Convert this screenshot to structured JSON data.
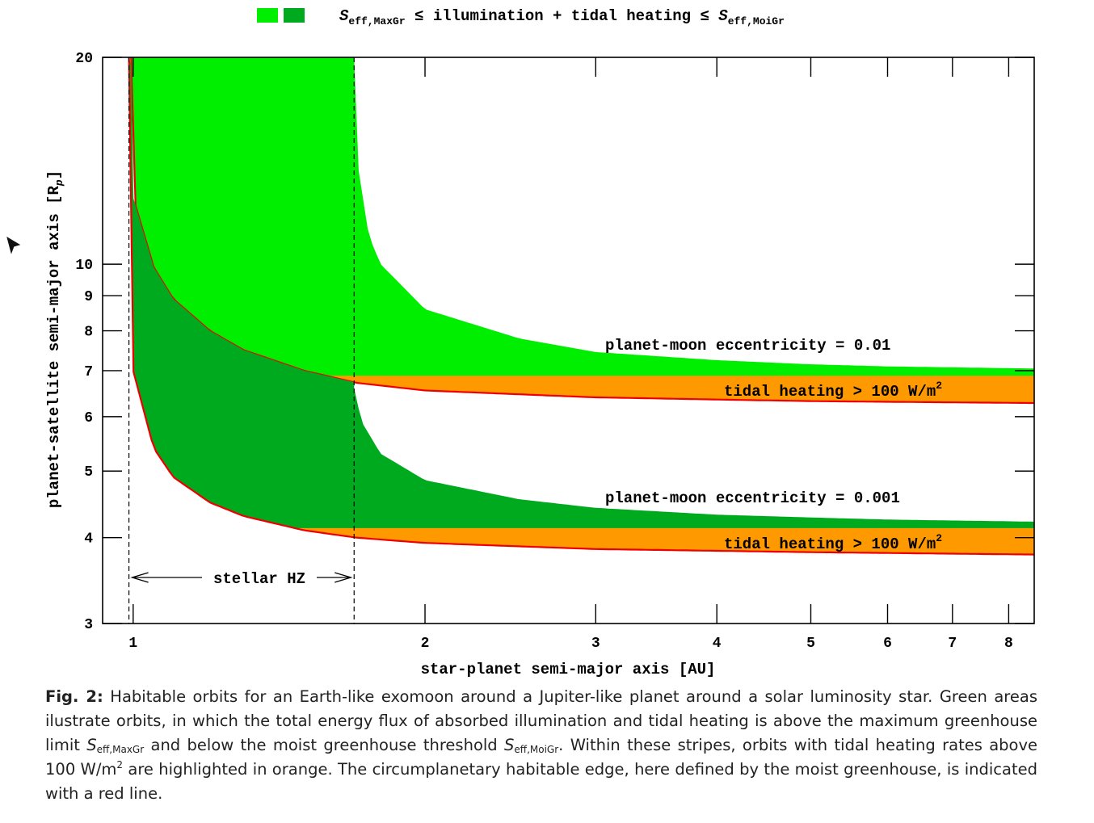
{
  "chart_data": {
    "type": "area",
    "legend": {
      "position": "top-center",
      "swatch_colors": [
        "#00ee00",
        "#00aa1e"
      ],
      "label_S1": "S",
      "label_S1_sub": "eff,MaxGr",
      "label_le1": " ≤ illumination + tidal heating ≤ ",
      "label_S2": "S",
      "label_S2_sub": "eff,MoiGr"
    },
    "xlabel": "star-planet semi-major axis [AU]",
    "ylabel": "planet-satellite semi-major axis [R",
    "ylabel_sub": "p",
    "ylabel_end": "]",
    "xscale": "log",
    "yscale": "log",
    "xlim": [
      0.93,
      8.5
    ],
    "ylim": [
      3,
      20
    ],
    "xticks": [
      1,
      2,
      3,
      4,
      5,
      6,
      7,
      8
    ],
    "yticks": [
      3,
      4,
      5,
      6,
      7,
      8,
      9,
      10,
      20
    ],
    "hz": {
      "inner": 0.99,
      "outer": 1.69,
      "label": "stellar HZ"
    },
    "series": [
      {
        "eccentricity": 0.01,
        "color": "#00ee00",
        "red_line": [
          [
            0.995,
            20
          ],
          [
            1.0,
            12.5
          ],
          [
            1.05,
            9.9
          ],
          [
            1.1,
            8.9
          ],
          [
            1.2,
            8.0
          ],
          [
            1.3,
            7.5
          ],
          [
            1.5,
            7.0
          ],
          [
            1.7,
            6.72
          ],
          [
            2.0,
            6.55
          ],
          [
            3.0,
            6.4
          ],
          [
            5.0,
            6.32
          ],
          [
            8.5,
            6.28
          ]
        ],
        "outer_edge": [
          [
            1.69,
            20
          ],
          [
            1.7,
            14.3
          ],
          [
            1.75,
            11.0
          ],
          [
            1.8,
            10.0
          ],
          [
            2.0,
            8.6
          ],
          [
            2.5,
            7.8
          ],
          [
            3.0,
            7.45
          ],
          [
            4.0,
            7.25
          ],
          [
            5.0,
            7.15
          ],
          [
            6.0,
            7.1
          ],
          [
            8.5,
            7.05
          ]
        ],
        "tidal_threshold": 6.88
      },
      {
        "eccentricity": 0.001,
        "color": "#00aa1e",
        "red_line": [
          [
            0.99,
            20
          ],
          [
            0.995,
            10
          ],
          [
            1.0,
            7.0
          ],
          [
            1.05,
            5.4
          ],
          [
            1.1,
            4.9
          ],
          [
            1.2,
            4.5
          ],
          [
            1.3,
            4.3
          ],
          [
            1.5,
            4.1
          ],
          [
            1.7,
            4.0
          ],
          [
            2.0,
            3.93
          ],
          [
            3.0,
            3.85
          ],
          [
            5.0,
            3.81
          ],
          [
            8.5,
            3.78
          ]
        ],
        "outer_edge": [
          [
            1.69,
            6.6
          ],
          [
            1.72,
            5.9
          ],
          [
            1.8,
            5.3
          ],
          [
            2.0,
            4.85
          ],
          [
            2.5,
            4.55
          ],
          [
            3.0,
            4.42
          ],
          [
            4.0,
            4.32
          ],
          [
            5.0,
            4.28
          ],
          [
            6.0,
            4.25
          ],
          [
            8.5,
            4.22
          ]
        ],
        "tidal_threshold": 4.13
      }
    ],
    "tidal_color": "#ff9900",
    "red_color": "#ee0000",
    "annotations": {
      "ecc1": "planet-moon eccentricity = 0.01",
      "ecc2": "planet-moon eccentricity = 0.001",
      "tidal": "tidal heating > 100 W/m",
      "tidal_sup": "2"
    }
  },
  "caption": {
    "fig_label": "Fig. 2:",
    "text1": " Habitable orbits for an Earth-like exomoon around a Jupiter-like planet around a solar luminosity star. Green areas ilustrate orbits, in which the total energy flux of absorbed illumination and tidal heating is above the maximum greenhouse limit ",
    "s1": "S",
    "s1_sub": "eff,MaxGr",
    "text2": " and below the moist greenhouse threshold ",
    "s2": "S",
    "s2_sub": "eff,MoiGr",
    "text3": ". Within these stripes, orbits with tidal heating rates above 100 W/m",
    "sup": "2",
    "text4": " are highlighted in orange. The circumplanetary habitable edge, here defined by the moist greenhouse, is indicated with a red line."
  },
  "cursor_icon": "mouse-pointer-icon"
}
